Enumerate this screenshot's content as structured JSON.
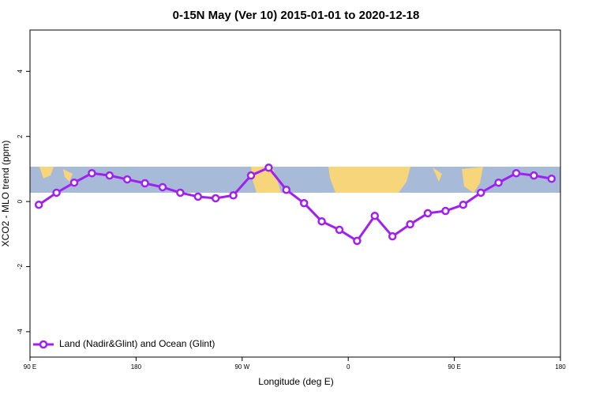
{
  "chart_data": {
    "type": "line",
    "title": "0-15N May (Ver 10)   2015-01-01 to 2020-12-18",
    "xlabel": "Longitude (deg E)",
    "ylabel": "XCO2 - MLO trend (ppm)",
    "x": [
      97.5,
      112.5,
      127.5,
      142.5,
      157.5,
      172.5,
      187.5,
      202.5,
      217.5,
      232.5,
      247.5,
      262.5,
      277.5,
      292.5,
      307.5,
      322.5,
      337.5,
      352.5,
      367.5,
      382.5,
      397.5,
      412.5,
      427.5,
      442.5,
      457.5,
      472.5,
      487.5,
      502.5,
      517.5,
      532.5
    ],
    "series": [
      {
        "name": "Land (Nadir&Glint) and Ocean (Glint)",
        "color": "#a020f0",
        "values": [
          -0.1,
          0.27,
          0.58,
          0.87,
          0.8,
          0.68,
          0.56,
          0.44,
          0.27,
          0.15,
          0.1,
          0.19,
          0.8,
          1.04,
          0.36,
          -0.05,
          -0.61,
          -0.87,
          -1.21,
          -0.44,
          -1.07,
          -0.7,
          -0.36,
          -0.29,
          -0.1,
          0.27,
          0.58,
          0.87,
          0.8,
          0.7
        ]
      }
    ],
    "xlim": [
      90,
      540
    ],
    "xticks": [
      {
        "value": 90,
        "label": "90 E"
      },
      {
        "value": 180,
        "label": "180"
      },
      {
        "value": 270,
        "label": "90 W"
      },
      {
        "value": 360,
        "label": "0"
      },
      {
        "value": 450,
        "label": "90 E"
      },
      {
        "value": 540,
        "label": "180"
      }
    ],
    "ylim": [
      -4.78,
      5.27
    ],
    "yticks": [
      -4,
      -2,
      0,
      2,
      4
    ],
    "legend": "bottom-left"
  }
}
